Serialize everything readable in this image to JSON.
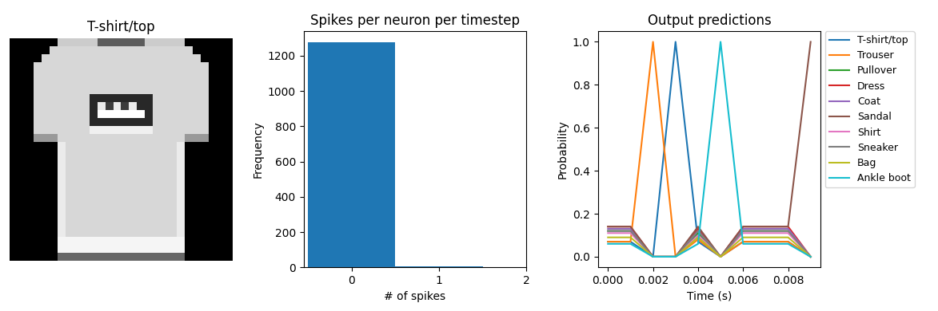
{
  "chart_data": [
    {
      "type": "image",
      "title": "T-shirt/top",
      "color": "gray",
      "tick_labels": false,
      "cells": [
        [
          0,
          0,
          0,
          0,
          0,
          0,
          200,
          200,
          200,
          200,
          200,
          90,
          90,
          90,
          90,
          90,
          90,
          200,
          200,
          200,
          200,
          200,
          0,
          0,
          0,
          0,
          0,
          0
        ],
        [
          0,
          0,
          0,
          0,
          0,
          210,
          210,
          210,
          210,
          210,
          210,
          210,
          210,
          210,
          210,
          210,
          210,
          210,
          210,
          210,
          210,
          210,
          210,
          0,
          0,
          0,
          0,
          0
        ],
        [
          0,
          0,
          0,
          0,
          210,
          210,
          210,
          210,
          210,
          210,
          210,
          210,
          210,
          210,
          210,
          210,
          210,
          210,
          210,
          210,
          210,
          210,
          210,
          210,
          0,
          0,
          0,
          0
        ],
        [
          0,
          0,
          0,
          210,
          210,
          210,
          210,
          210,
          210,
          210,
          210,
          210,
          210,
          210,
          210,
          210,
          210,
          210,
          210,
          210,
          210,
          210,
          210,
          210,
          210,
          0,
          0,
          0
        ],
        [
          0,
          0,
          0,
          210,
          210,
          210,
          210,
          210,
          210,
          210,
          210,
          210,
          210,
          210,
          210,
          210,
          210,
          210,
          210,
          210,
          210,
          210,
          210,
          210,
          210,
          0,
          0,
          0
        ],
        [
          0,
          0,
          0,
          210,
          210,
          210,
          210,
          210,
          210,
          210,
          210,
          210,
          210,
          210,
          210,
          210,
          210,
          210,
          210,
          210,
          210,
          210,
          210,
          210,
          210,
          0,
          0,
          0
        ],
        [
          0,
          0,
          0,
          210,
          210,
          210,
          210,
          210,
          210,
          210,
          210,
          210,
          210,
          210,
          210,
          210,
          210,
          210,
          210,
          210,
          210,
          210,
          210,
          210,
          210,
          0,
          0,
          0
        ],
        [
          0,
          0,
          0,
          210,
          210,
          210,
          210,
          210,
          210,
          210,
          40,
          40,
          40,
          40,
          40,
          40,
          40,
          40,
          210,
          210,
          210,
          210,
          210,
          210,
          210,
          0,
          0,
          0
        ],
        [
          0,
          0,
          0,
          210,
          210,
          210,
          210,
          210,
          210,
          210,
          40,
          230,
          60,
          230,
          60,
          230,
          40,
          40,
          210,
          210,
          210,
          210,
          210,
          210,
          210,
          0,
          0,
          0
        ],
        [
          0,
          0,
          0,
          210,
          210,
          210,
          210,
          210,
          210,
          210,
          40,
          250,
          250,
          250,
          250,
          250,
          250,
          40,
          210,
          210,
          210,
          210,
          210,
          210,
          210,
          0,
          0,
          0
        ],
        [
          0,
          0,
          0,
          210,
          210,
          210,
          210,
          210,
          210,
          210,
          40,
          40,
          40,
          40,
          40,
          40,
          40,
          40,
          210,
          210,
          210,
          210,
          210,
          210,
          210,
          0,
          0,
          0
        ],
        [
          0,
          0,
          0,
          210,
          210,
          210,
          210,
          210,
          210,
          210,
          235,
          235,
          235,
          235,
          235,
          235,
          235,
          235,
          210,
          210,
          210,
          210,
          210,
          210,
          210,
          0,
          0,
          0
        ],
        [
          0,
          0,
          0,
          150,
          150,
          150,
          210,
          210,
          210,
          210,
          210,
          210,
          210,
          210,
          210,
          210,
          210,
          210,
          210,
          210,
          210,
          210,
          150,
          150,
          150,
          0,
          0,
          0
        ],
        [
          0,
          0,
          0,
          0,
          0,
          0,
          230,
          210,
          210,
          210,
          210,
          210,
          210,
          210,
          210,
          210,
          210,
          210,
          210,
          210,
          210,
          230,
          0,
          0,
          0,
          0,
          0,
          0
        ],
        [
          0,
          0,
          0,
          0,
          0,
          0,
          230,
          210,
          210,
          210,
          210,
          210,
          210,
          210,
          210,
          210,
          210,
          210,
          210,
          210,
          210,
          230,
          0,
          0,
          0,
          0,
          0,
          0
        ],
        [
          0,
          0,
          0,
          0,
          0,
          0,
          230,
          210,
          210,
          210,
          210,
          210,
          210,
          210,
          210,
          210,
          210,
          210,
          210,
          210,
          210,
          230,
          0,
          0,
          0,
          0,
          0,
          0
        ],
        [
          0,
          0,
          0,
          0,
          0,
          0,
          230,
          210,
          210,
          210,
          210,
          210,
          210,
          210,
          210,
          210,
          210,
          210,
          210,
          210,
          210,
          230,
          0,
          0,
          0,
          0,
          0,
          0
        ],
        [
          0,
          0,
          0,
          0,
          0,
          0,
          230,
          210,
          210,
          210,
          210,
          210,
          210,
          210,
          210,
          210,
          210,
          210,
          210,
          210,
          210,
          230,
          0,
          0,
          0,
          0,
          0,
          0
        ],
        [
          0,
          0,
          0,
          0,
          0,
          0,
          230,
          210,
          210,
          210,
          210,
          210,
          210,
          210,
          210,
          210,
          210,
          210,
          210,
          210,
          210,
          230,
          0,
          0,
          0,
          0,
          0,
          0
        ],
        [
          0,
          0,
          0,
          0,
          0,
          0,
          230,
          210,
          210,
          210,
          210,
          210,
          210,
          210,
          210,
          210,
          210,
          210,
          210,
          210,
          210,
          230,
          0,
          0,
          0,
          0,
          0,
          0
        ],
        [
          0,
          0,
          0,
          0,
          0,
          0,
          230,
          210,
          210,
          210,
          210,
          210,
          210,
          210,
          210,
          210,
          210,
          210,
          210,
          210,
          210,
          230,
          0,
          0,
          0,
          0,
          0,
          0
        ],
        [
          0,
          0,
          0,
          0,
          0,
          0,
          230,
          210,
          210,
          210,
          210,
          210,
          210,
          210,
          210,
          210,
          210,
          210,
          210,
          210,
          210,
          230,
          0,
          0,
          0,
          0,
          0,
          0
        ],
        [
          0,
          0,
          0,
          0,
          0,
          0,
          230,
          210,
          210,
          210,
          210,
          210,
          210,
          210,
          210,
          210,
          210,
          210,
          210,
          210,
          210,
          230,
          0,
          0,
          0,
          0,
          0,
          0
        ],
        [
          0,
          0,
          0,
          0,
          0,
          0,
          230,
          210,
          210,
          210,
          210,
          210,
          210,
          210,
          210,
          210,
          210,
          210,
          210,
          210,
          210,
          230,
          0,
          0,
          0,
          0,
          0,
          0
        ],
        [
          0,
          0,
          0,
          0,
          0,
          0,
          230,
          210,
          210,
          210,
          210,
          210,
          210,
          210,
          210,
          210,
          210,
          210,
          210,
          210,
          210,
          230,
          0,
          0,
          0,
          0,
          0,
          0
        ],
        [
          0,
          0,
          0,
          0,
          0,
          0,
          240,
          240,
          240,
          240,
          240,
          240,
          240,
          240,
          240,
          240,
          240,
          240,
          240,
          240,
          240,
          240,
          0,
          0,
          0,
          0,
          0,
          0
        ],
        [
          0,
          0,
          0,
          0,
          0,
          0,
          240,
          240,
          240,
          240,
          240,
          240,
          240,
          240,
          240,
          240,
          240,
          240,
          240,
          240,
          240,
          240,
          0,
          0,
          0,
          0,
          0,
          0
        ],
        [
          0,
          0,
          0,
          0,
          0,
          0,
          100,
          100,
          100,
          100,
          100,
          100,
          100,
          100,
          100,
          100,
          100,
          100,
          100,
          100,
          100,
          100,
          0,
          0,
          0,
          0,
          0,
          0
        ]
      ]
    },
    {
      "type": "histogram",
      "title": "Spikes per neuron per timestep",
      "x_label": "# of spikes",
      "y_label": "Frequency",
      "bins": [
        -0.5,
        0.5,
        1.5
      ],
      "counts": [
        1275,
        5
      ],
      "color": "#1f77b4",
      "xlim": [
        -0.55,
        2.0
      ],
      "xticks": [
        0,
        1,
        2
      ],
      "ylim": [
        0,
        1340
      ],
      "yticks": [
        0,
        200,
        400,
        600,
        800,
        1000,
        1200
      ]
    },
    {
      "type": "line",
      "title": "Output predictions",
      "x_label": "Time (s)",
      "y_label": "Probability",
      "x": [
        0.0,
        0.001,
        0.002,
        0.003,
        0.004,
        0.005,
        0.006,
        0.007,
        0.008,
        0.009
      ],
      "series": [
        {
          "name": "T-shirt/top",
          "color": "#1f77b4",
          "values": [
            0.07,
            0.07,
            0,
            1,
            0.07,
            0,
            0.07,
            0.07,
            0.07,
            0
          ]
        },
        {
          "name": "Trouser",
          "color": "#ff7f0e",
          "values": [
            0.07,
            0.07,
            1,
            0,
            0.08,
            0,
            0.07,
            0.07,
            0.07,
            0
          ]
        },
        {
          "name": "Pullover",
          "color": "#2ca02c",
          "values": [
            0.12,
            0.12,
            0,
            0,
            0.11,
            0,
            0.12,
            0.12,
            0.12,
            0
          ]
        },
        {
          "name": "Dress",
          "color": "#d62728",
          "values": [
            0.14,
            0.14,
            0,
            0,
            0.13,
            0,
            0.14,
            0.14,
            0.14,
            0
          ]
        },
        {
          "name": "Coat",
          "color": "#9467bd",
          "values": [
            0.13,
            0.13,
            0,
            0,
            0.12,
            0,
            0.13,
            0.13,
            0.13,
            0
          ]
        },
        {
          "name": "Sandal",
          "color": "#8c564b",
          "values": [
            0.14,
            0.14,
            0,
            0,
            0.14,
            0,
            0.14,
            0.14,
            0.14,
            1
          ]
        },
        {
          "name": "Shirt",
          "color": "#e377c2",
          "values": [
            0.11,
            0.11,
            0,
            0,
            0.1,
            0,
            0.11,
            0.11,
            0.11,
            0
          ]
        },
        {
          "name": "Sneaker",
          "color": "#7f7f7f",
          "values": [
            0.12,
            0.12,
            0,
            0,
            0.12,
            0,
            0.12,
            0.12,
            0.12,
            0
          ]
        },
        {
          "name": "Bag",
          "color": "#bcbd22",
          "values": [
            0.09,
            0.09,
            0,
            0,
            0.09,
            0,
            0.09,
            0.09,
            0.09,
            0
          ]
        },
        {
          "name": "Ankle boot",
          "color": "#17becf",
          "values": [
            0.06,
            0.06,
            0,
            0,
            0.06,
            1,
            0.06,
            0.06,
            0.06,
            0
          ]
        }
      ],
      "xlim": [
        -0.00045,
        0.00945
      ],
      "xticks": [
        {
          "value": 0,
          "label": "0.000"
        },
        {
          "value": 0.002,
          "label": "0.002"
        },
        {
          "value": 0.004,
          "label": "0.004"
        },
        {
          "value": 0.006,
          "label": "0.006"
        },
        {
          "value": 0.008,
          "label": "0.008"
        }
      ],
      "ylim": [
        -0.05,
        1.05
      ],
      "yticks": [
        {
          "value": 0,
          "label": "0.0"
        },
        {
          "value": 0.2,
          "label": "0.2"
        },
        {
          "value": 0.4,
          "label": "0.4"
        },
        {
          "value": 0.6,
          "label": "0.6"
        },
        {
          "value": 0.8,
          "label": "0.8"
        },
        {
          "value": 1.0,
          "label": "1.0"
        }
      ],
      "legend": "upper left"
    }
  ]
}
